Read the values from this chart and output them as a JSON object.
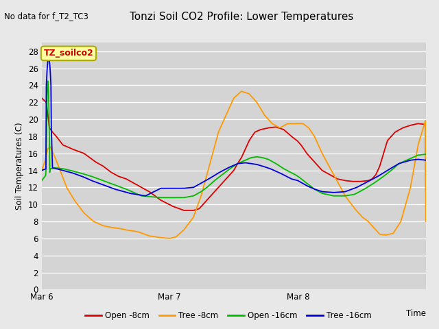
{
  "title": "Tonzi Soil CO2 Profile: Lower Temperatures",
  "subtitle": "No data for f_T2_TC3",
  "xlabel": "Time",
  "ylabel": "Soil Temperatures (C)",
  "ylim": [
    0,
    29
  ],
  "yticks": [
    0,
    2,
    4,
    6,
    8,
    10,
    12,
    14,
    16,
    18,
    20,
    22,
    24,
    26,
    28
  ],
  "background_color": "#e8e8e8",
  "plot_bg_color": "#d4d4d4",
  "legend_label": "TZ_soilco2",
  "series": {
    "open_8cm": {
      "color": "#dd0000",
      "label": "Open -8cm"
    },
    "tree_8cm": {
      "color": "#ff9900",
      "label": "Tree -8cm"
    },
    "open_16cm": {
      "color": "#00bb00",
      "label": "Open -16cm"
    },
    "tree_16cm": {
      "color": "#0000dd",
      "label": "Tree -16cm"
    }
  },
  "x_ticks_labels": [
    "Mar 6",
    "Mar 7",
    "Mar 8"
  ],
  "x_ticks_pos": [
    0,
    0.333,
    0.667
  ],
  "open_8cm_kp_x": [
    0.0,
    0.012,
    0.02,
    0.028,
    0.038,
    0.055,
    0.08,
    0.11,
    0.14,
    0.16,
    0.18,
    0.2,
    0.22,
    0.24,
    0.26,
    0.28,
    0.31,
    0.34,
    0.37,
    0.395,
    0.41,
    0.42,
    0.43,
    0.45,
    0.47,
    0.49,
    0.5,
    0.51,
    0.52,
    0.53,
    0.54,
    0.555,
    0.57,
    0.59,
    0.61,
    0.63,
    0.65,
    0.665,
    0.675,
    0.69,
    0.71,
    0.73,
    0.75,
    0.77,
    0.79,
    0.81,
    0.83,
    0.85,
    0.86,
    0.87,
    0.88,
    0.89,
    0.9,
    0.92,
    0.94,
    0.96,
    0.98,
    1.0
  ],
  "open_8cm_kp_y": [
    22.5,
    22.0,
    19.0,
    18.5,
    18.0,
    17.0,
    16.5,
    16.0,
    15.0,
    14.5,
    13.8,
    13.3,
    13.0,
    12.5,
    12.0,
    11.5,
    10.5,
    9.8,
    9.3,
    9.3,
    9.5,
    10.0,
    10.5,
    11.5,
    12.5,
    13.5,
    14.0,
    14.8,
    15.5,
    16.5,
    17.5,
    18.5,
    18.8,
    19.0,
    19.1,
    18.8,
    18.0,
    17.5,
    17.0,
    16.0,
    15.0,
    14.0,
    13.5,
    13.0,
    12.8,
    12.7,
    12.7,
    12.8,
    13.0,
    13.5,
    14.5,
    16.0,
    17.5,
    18.5,
    19.0,
    19.3,
    19.5,
    19.4
  ],
  "tree_8cm_kp_x": [
    0.0,
    0.008,
    0.015,
    0.022,
    0.028,
    0.035,
    0.048,
    0.065,
    0.085,
    0.11,
    0.135,
    0.16,
    0.18,
    0.2,
    0.22,
    0.25,
    0.28,
    0.31,
    0.333,
    0.35,
    0.37,
    0.395,
    0.415,
    0.43,
    0.445,
    0.46,
    0.48,
    0.5,
    0.52,
    0.54,
    0.56,
    0.58,
    0.6,
    0.62,
    0.64,
    0.66,
    0.667,
    0.68,
    0.695,
    0.71,
    0.73,
    0.76,
    0.79,
    0.815,
    0.835,
    0.85,
    0.86,
    0.87,
    0.88,
    0.895,
    0.915,
    0.935,
    0.96,
    0.98,
    1.0
  ],
  "tree_8cm_kp_y": [
    14.0,
    15.0,
    16.5,
    16.8,
    16.2,
    15.5,
    14.0,
    12.0,
    10.5,
    9.0,
    8.0,
    7.5,
    7.3,
    7.2,
    7.0,
    6.8,
    6.3,
    6.1,
    6.0,
    6.2,
    7.0,
    8.5,
    11.0,
    13.5,
    16.0,
    18.5,
    20.5,
    22.5,
    23.3,
    23.0,
    22.0,
    20.5,
    19.5,
    19.0,
    19.5,
    19.5,
    19.5,
    19.5,
    19.0,
    18.0,
    16.0,
    13.5,
    11.0,
    9.5,
    8.5,
    8.0,
    7.5,
    7.0,
    6.5,
    6.4,
    6.6,
    8.0,
    12.0,
    17.0,
    20.0
  ],
  "open_16cm_kp_x": [
    0.0,
    0.012,
    0.022,
    0.035,
    0.055,
    0.075,
    0.1,
    0.13,
    0.16,
    0.19,
    0.22,
    0.26,
    0.31,
    0.34,
    0.37,
    0.395,
    0.415,
    0.43,
    0.45,
    0.47,
    0.49,
    0.51,
    0.53,
    0.545,
    0.56,
    0.575,
    0.59,
    0.61,
    0.63,
    0.66,
    0.667,
    0.69,
    0.71,
    0.73,
    0.76,
    0.79,
    0.815,
    0.84,
    0.865,
    0.89,
    0.91,
    0.93,
    0.96,
    0.98,
    1.0
  ],
  "open_16cm_kp_y": [
    12.8,
    13.5,
    14.2,
    14.3,
    14.2,
    14.0,
    13.7,
    13.3,
    12.8,
    12.3,
    11.8,
    11.0,
    10.8,
    10.8,
    10.8,
    11.0,
    11.5,
    12.0,
    12.8,
    13.5,
    14.2,
    14.8,
    15.2,
    15.5,
    15.6,
    15.5,
    15.3,
    14.8,
    14.2,
    13.5,
    13.3,
    12.5,
    11.8,
    11.3,
    11.0,
    11.0,
    11.2,
    11.8,
    12.5,
    13.3,
    14.0,
    14.8,
    15.4,
    15.8,
    15.9
  ],
  "tree_16cm_kp_x": [
    0.0,
    0.012,
    0.02,
    0.028,
    0.038,
    0.055,
    0.08,
    0.105,
    0.13,
    0.16,
    0.19,
    0.23,
    0.27,
    0.31,
    0.345,
    0.37,
    0.395,
    0.415,
    0.435,
    0.46,
    0.485,
    0.51,
    0.53,
    0.545,
    0.56,
    0.575,
    0.595,
    0.62,
    0.65,
    0.667,
    0.69,
    0.71,
    0.73,
    0.76,
    0.79,
    0.82,
    0.85,
    0.875,
    0.9,
    0.93,
    0.96,
    0.98,
    1.0
  ],
  "tree_16cm_kp_y": [
    14.0,
    14.2,
    27.2,
    14.3,
    14.2,
    14.0,
    13.7,
    13.3,
    12.8,
    12.3,
    11.8,
    11.3,
    11.0,
    11.9,
    11.9,
    11.9,
    12.0,
    12.5,
    13.0,
    13.7,
    14.3,
    14.8,
    14.9,
    14.8,
    14.7,
    14.5,
    14.2,
    13.7,
    13.0,
    12.8,
    12.2,
    11.8,
    11.5,
    11.4,
    11.5,
    12.0,
    12.7,
    13.3,
    14.0,
    14.8,
    15.2,
    15.3,
    15.2
  ]
}
